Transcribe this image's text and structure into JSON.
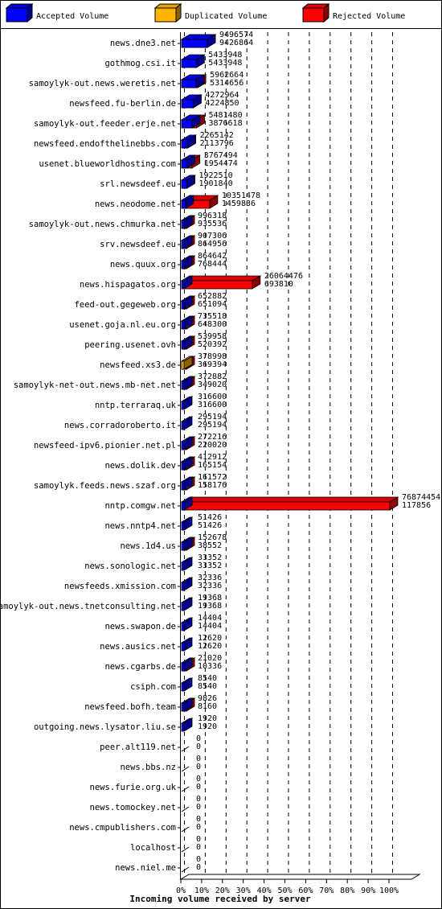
{
  "chart_data": {
    "type": "bar",
    "xlabel": "Incoming volume received by server",
    "ticks": [
      "0%",
      "10%",
      "20%",
      "30%",
      "40%",
      "50%",
      "60%",
      "70%",
      "80%",
      "90%",
      "100%"
    ],
    "legend": [
      {
        "label": "Accepted Volume",
        "color": "#0000ff"
      },
      {
        "label": "Duplicated Volume",
        "color": "#ffb400"
      },
      {
        "label": "Rejected Volume",
        "color": "#ff0000"
      }
    ],
    "max_value": 76874454,
    "servers": [
      {
        "name": "news.dne3.net",
        "total": 9496574,
        "accepted": 9426864,
        "kind": "accepted"
      },
      {
        "name": "gothmog.csi.it",
        "total": 5433948,
        "accepted": 5433948,
        "kind": "accepted"
      },
      {
        "name": "samoylyk-out.news.weretis.net",
        "total": 5962664,
        "accepted": 5314656,
        "kind": "accepted"
      },
      {
        "name": "newsfeed.fu-berlin.de",
        "total": 4272964,
        "accepted": 4224850,
        "kind": "accepted"
      },
      {
        "name": "samoylyk-out.feeder.erje.net",
        "total": 5481480,
        "accepted": 3876618,
        "kind": "accepted"
      },
      {
        "name": "newsfeed.endofthelinebbs.com",
        "total": 2265142,
        "accepted": 2113796,
        "kind": "accepted"
      },
      {
        "name": "usenet.blueworldhosting.com",
        "total": 3767494,
        "accepted": 1954474,
        "kind": "accepted"
      },
      {
        "name": "srl.newsdeef.eu",
        "total": 1922510,
        "accepted": 1901840,
        "kind": "accepted"
      },
      {
        "name": "news.neodome.net",
        "total": 10351478,
        "accepted": 1459836,
        "kind": "accepted"
      },
      {
        "name": "samoylyk-out.news.chmurka.net",
        "total": 996318,
        "accepted": 935536,
        "kind": "accepted"
      },
      {
        "name": "srv.newsdeef.eu",
        "total": 907306,
        "accepted": 864956,
        "kind": "accepted"
      },
      {
        "name": "news.quux.org",
        "total": 864642,
        "accepted": 768444,
        "kind": "accepted"
      },
      {
        "name": "news.hispagatos.org",
        "total": 26064476,
        "accepted": 693810,
        "kind": "accepted"
      },
      {
        "name": "feed-out.gegeweb.org",
        "total": 652882,
        "accepted": 651094,
        "kind": "accepted"
      },
      {
        "name": "usenet.goja.nl.eu.org",
        "total": 735518,
        "accepted": 648300,
        "kind": "accepted"
      },
      {
        "name": "peering.usenet.ovh",
        "total": 539958,
        "accepted": 520392,
        "kind": "accepted"
      },
      {
        "name": "newsfeed.xs3.de",
        "total": 378998,
        "accepted": 369394,
        "kind": "duplicated"
      },
      {
        "name": "samoylyk-net-out.news.mb-net.net",
        "total": 372882,
        "accepted": 349020,
        "kind": "accepted"
      },
      {
        "name": "nntp.terraraq.uk",
        "total": 316600,
        "accepted": 316600,
        "kind": "accepted"
      },
      {
        "name": "news.corradoroberto.it",
        "total": 295194,
        "accepted": 295194,
        "kind": "accepted"
      },
      {
        "name": "newsfeed-ipv6.pionier.net.pl",
        "total": 272216,
        "accepted": 220020,
        "kind": "accepted"
      },
      {
        "name": "news.dolik.dev",
        "total": 412912,
        "accepted": 165154,
        "kind": "accepted"
      },
      {
        "name": "samoylyk.feeds.news.szaf.org",
        "total": 161572,
        "accepted": 158176,
        "kind": "accepted"
      },
      {
        "name": "nntp.comgw.net",
        "total": 76874454,
        "accepted": 117856,
        "kind": "accepted"
      },
      {
        "name": "news.nntp4.net",
        "total": 51426,
        "accepted": 51426,
        "kind": "accepted"
      },
      {
        "name": "news.1d4.us",
        "total": 152678,
        "accepted": 38552,
        "kind": "accepted"
      },
      {
        "name": "news.sonologic.net",
        "total": 33352,
        "accepted": 33352,
        "kind": "accepted"
      },
      {
        "name": "newsfeeds.xmission.com",
        "total": 32336,
        "accepted": 32336,
        "kind": "accepted"
      },
      {
        "name": "samoylyk-out.news.tnetconsulting.net",
        "total": 19368,
        "accepted": 19368,
        "kind": "accepted"
      },
      {
        "name": "news.swapon.de",
        "total": 14404,
        "accepted": 14404,
        "kind": "accepted"
      },
      {
        "name": "news.ausics.net",
        "total": 12620,
        "accepted": 12620,
        "kind": "accepted"
      },
      {
        "name": "news.cgarbs.de",
        "total": 21020,
        "accepted": 10336,
        "kind": "accepted"
      },
      {
        "name": "csiph.com",
        "total": 8540,
        "accepted": 8540,
        "kind": "accepted"
      },
      {
        "name": "newsfeed.bofh.team",
        "total": 9826,
        "accepted": 8160,
        "kind": "accepted"
      },
      {
        "name": "outgoing.news.lysator.liu.se",
        "total": 1920,
        "accepted": 1920,
        "kind": "accepted"
      },
      {
        "name": "peer.alt119.net",
        "total": 0,
        "accepted": 0,
        "kind": "accepted"
      },
      {
        "name": "news.bbs.nz",
        "total": 0,
        "accepted": 0,
        "kind": "accepted"
      },
      {
        "name": "news.furie.org.uk",
        "total": 0,
        "accepted": 0,
        "kind": "accepted"
      },
      {
        "name": "news.tomockey.net",
        "total": 0,
        "accepted": 0,
        "kind": "accepted"
      },
      {
        "name": "news.cmpublishers.com",
        "total": 0,
        "accepted": 0,
        "kind": "accepted"
      },
      {
        "name": "localhost",
        "total": 0,
        "accepted": 0,
        "kind": "accepted"
      },
      {
        "name": "news.niel.me",
        "total": 0,
        "accepted": 0,
        "kind": "accepted"
      }
    ]
  }
}
